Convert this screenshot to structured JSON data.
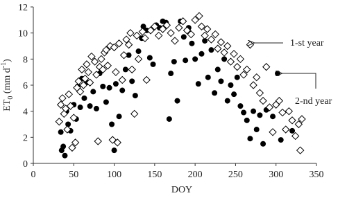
{
  "chart_data": {
    "type": "scatter",
    "x_label": "DOY",
    "y_label": {
      "main": "ET",
      "sub": "0",
      "unit": " (mm d",
      "sup": "-1",
      "close": ")"
    },
    "xlim": [
      0,
      350
    ],
    "xticks": [
      0,
      50,
      100,
      150,
      200,
      250,
      300,
      350
    ],
    "ylim": [
      0,
      12
    ],
    "yticks": [
      0,
      2,
      4,
      6,
      8,
      10,
      12
    ],
    "grid": false,
    "series": [
      {
        "name": "2-nd year",
        "marker": "circle",
        "color": "#000000",
        "x": [
          34,
          35,
          37,
          39,
          41,
          43,
          46,
          50,
          53,
          55,
          58,
          60,
          63,
          66,
          70,
          74,
          78,
          82,
          86,
          90,
          94,
          97,
          100,
          102,
          106,
          110,
          114,
          118,
          122,
          126,
          130,
          134,
          136,
          140,
          144,
          148,
          152,
          156,
          160,
          164,
          168,
          170,
          174,
          178,
          182,
          186,
          188,
          192,
          196,
          200,
          204,
          208,
          212,
          216,
          220,
          224,
          228,
          232,
          236,
          240,
          244,
          248,
          252,
          256,
          260,
          264,
          268,
          272,
          276,
          280,
          284,
          288,
          296,
          302,
          306,
          320
        ],
        "values": [
          2.4,
          1.0,
          1.3,
          0.6,
          4.0,
          3.0,
          2.5,
          4.5,
          3.4,
          5.9,
          4.3,
          6.5,
          5.0,
          6.2,
          4.4,
          5.5,
          4.2,
          6.9,
          5.9,
          4.7,
          5.8,
          3.0,
          1.0,
          6.1,
          3.6,
          5.6,
          7.2,
          8.3,
          6.3,
          5.2,
          8.6,
          9.6,
          10.5,
          10.2,
          8.1,
          7.6,
          10.6,
          10.4,
          10.9,
          10.8,
          3.4,
          6.9,
          7.8,
          4.8,
          10.9,
          9.7,
          7.9,
          10.4,
          9.2,
          8.0,
          6.1,
          8.4,
          9.4,
          6.6,
          8.7,
          5.4,
          7.2,
          6.3,
          8.0,
          4.8,
          6.0,
          5.3,
          6.6,
          4.4,
          3.9,
          3.3,
          1.9,
          4.0,
          2.6,
          3.7,
          1.5,
          4.1,
          3.6,
          6.9,
          1.8,
          2.5
        ]
      },
      {
        "name": "1-st year",
        "marker": "diamond",
        "color": "#000000",
        "x": [
          32,
          34,
          36,
          38,
          40,
          42,
          44,
          46,
          48,
          50,
          52,
          54,
          56,
          58,
          60,
          62,
          64,
          66,
          68,
          70,
          72,
          76,
          78,
          80,
          82,
          84,
          86,
          88,
          90,
          92,
          95,
          98,
          100,
          102,
          104,
          106,
          110,
          112,
          115,
          118,
          120,
          122,
          125,
          128,
          130,
          135,
          138,
          140,
          145,
          150,
          155,
          160,
          165,
          170,
          175,
          180,
          185,
          190,
          195,
          200,
          205,
          208,
          212,
          215,
          220,
          225,
          228,
          232,
          236,
          240,
          244,
          248,
          252,
          256,
          260,
          264,
          268,
          272,
          276,
          280,
          284,
          288,
          292,
          296,
          300,
          304,
          308,
          312,
          316,
          320,
          324,
          328,
          330,
          332
        ],
        "values": [
          3.2,
          4.5,
          5.0,
          3.8,
          4.2,
          2.6,
          5.3,
          4.4,
          1.2,
          3.5,
          1.6,
          5.8,
          6.3,
          5.5,
          7.2,
          6.0,
          6.5,
          7.6,
          7.0,
          6.2,
          8.2,
          7.8,
          6.8,
          1.7,
          7.4,
          8.0,
          7.2,
          8.5,
          8.7,
          7.5,
          9.0,
          1.8,
          8.9,
          7.0,
          1.6,
          9.2,
          6.4,
          8.3,
          9.5,
          9.1,
          10.0,
          7.2,
          3.8,
          9.8,
          8.0,
          10.1,
          9.6,
          6.4,
          10.2,
          10.5,
          9.8,
          10.3,
          10.6,
          10.0,
          9.4,
          10.4,
          10.9,
          10.2,
          9.9,
          11.0,
          11.3,
          10.5,
          9.8,
          10.3,
          9.5,
          9.9,
          8.8,
          9.3,
          8.5,
          9.0,
          7.8,
          8.4,
          7.4,
          8.0,
          6.8,
          7.2,
          9.1,
          6.0,
          6.6,
          5.4,
          4.8,
          7.4,
          4.3,
          2.4,
          4.5,
          4.8,
          3.9,
          2.6,
          4.0,
          3.3,
          2.1,
          3.0,
          1.0,
          3.4
        ]
      }
    ]
  }
}
